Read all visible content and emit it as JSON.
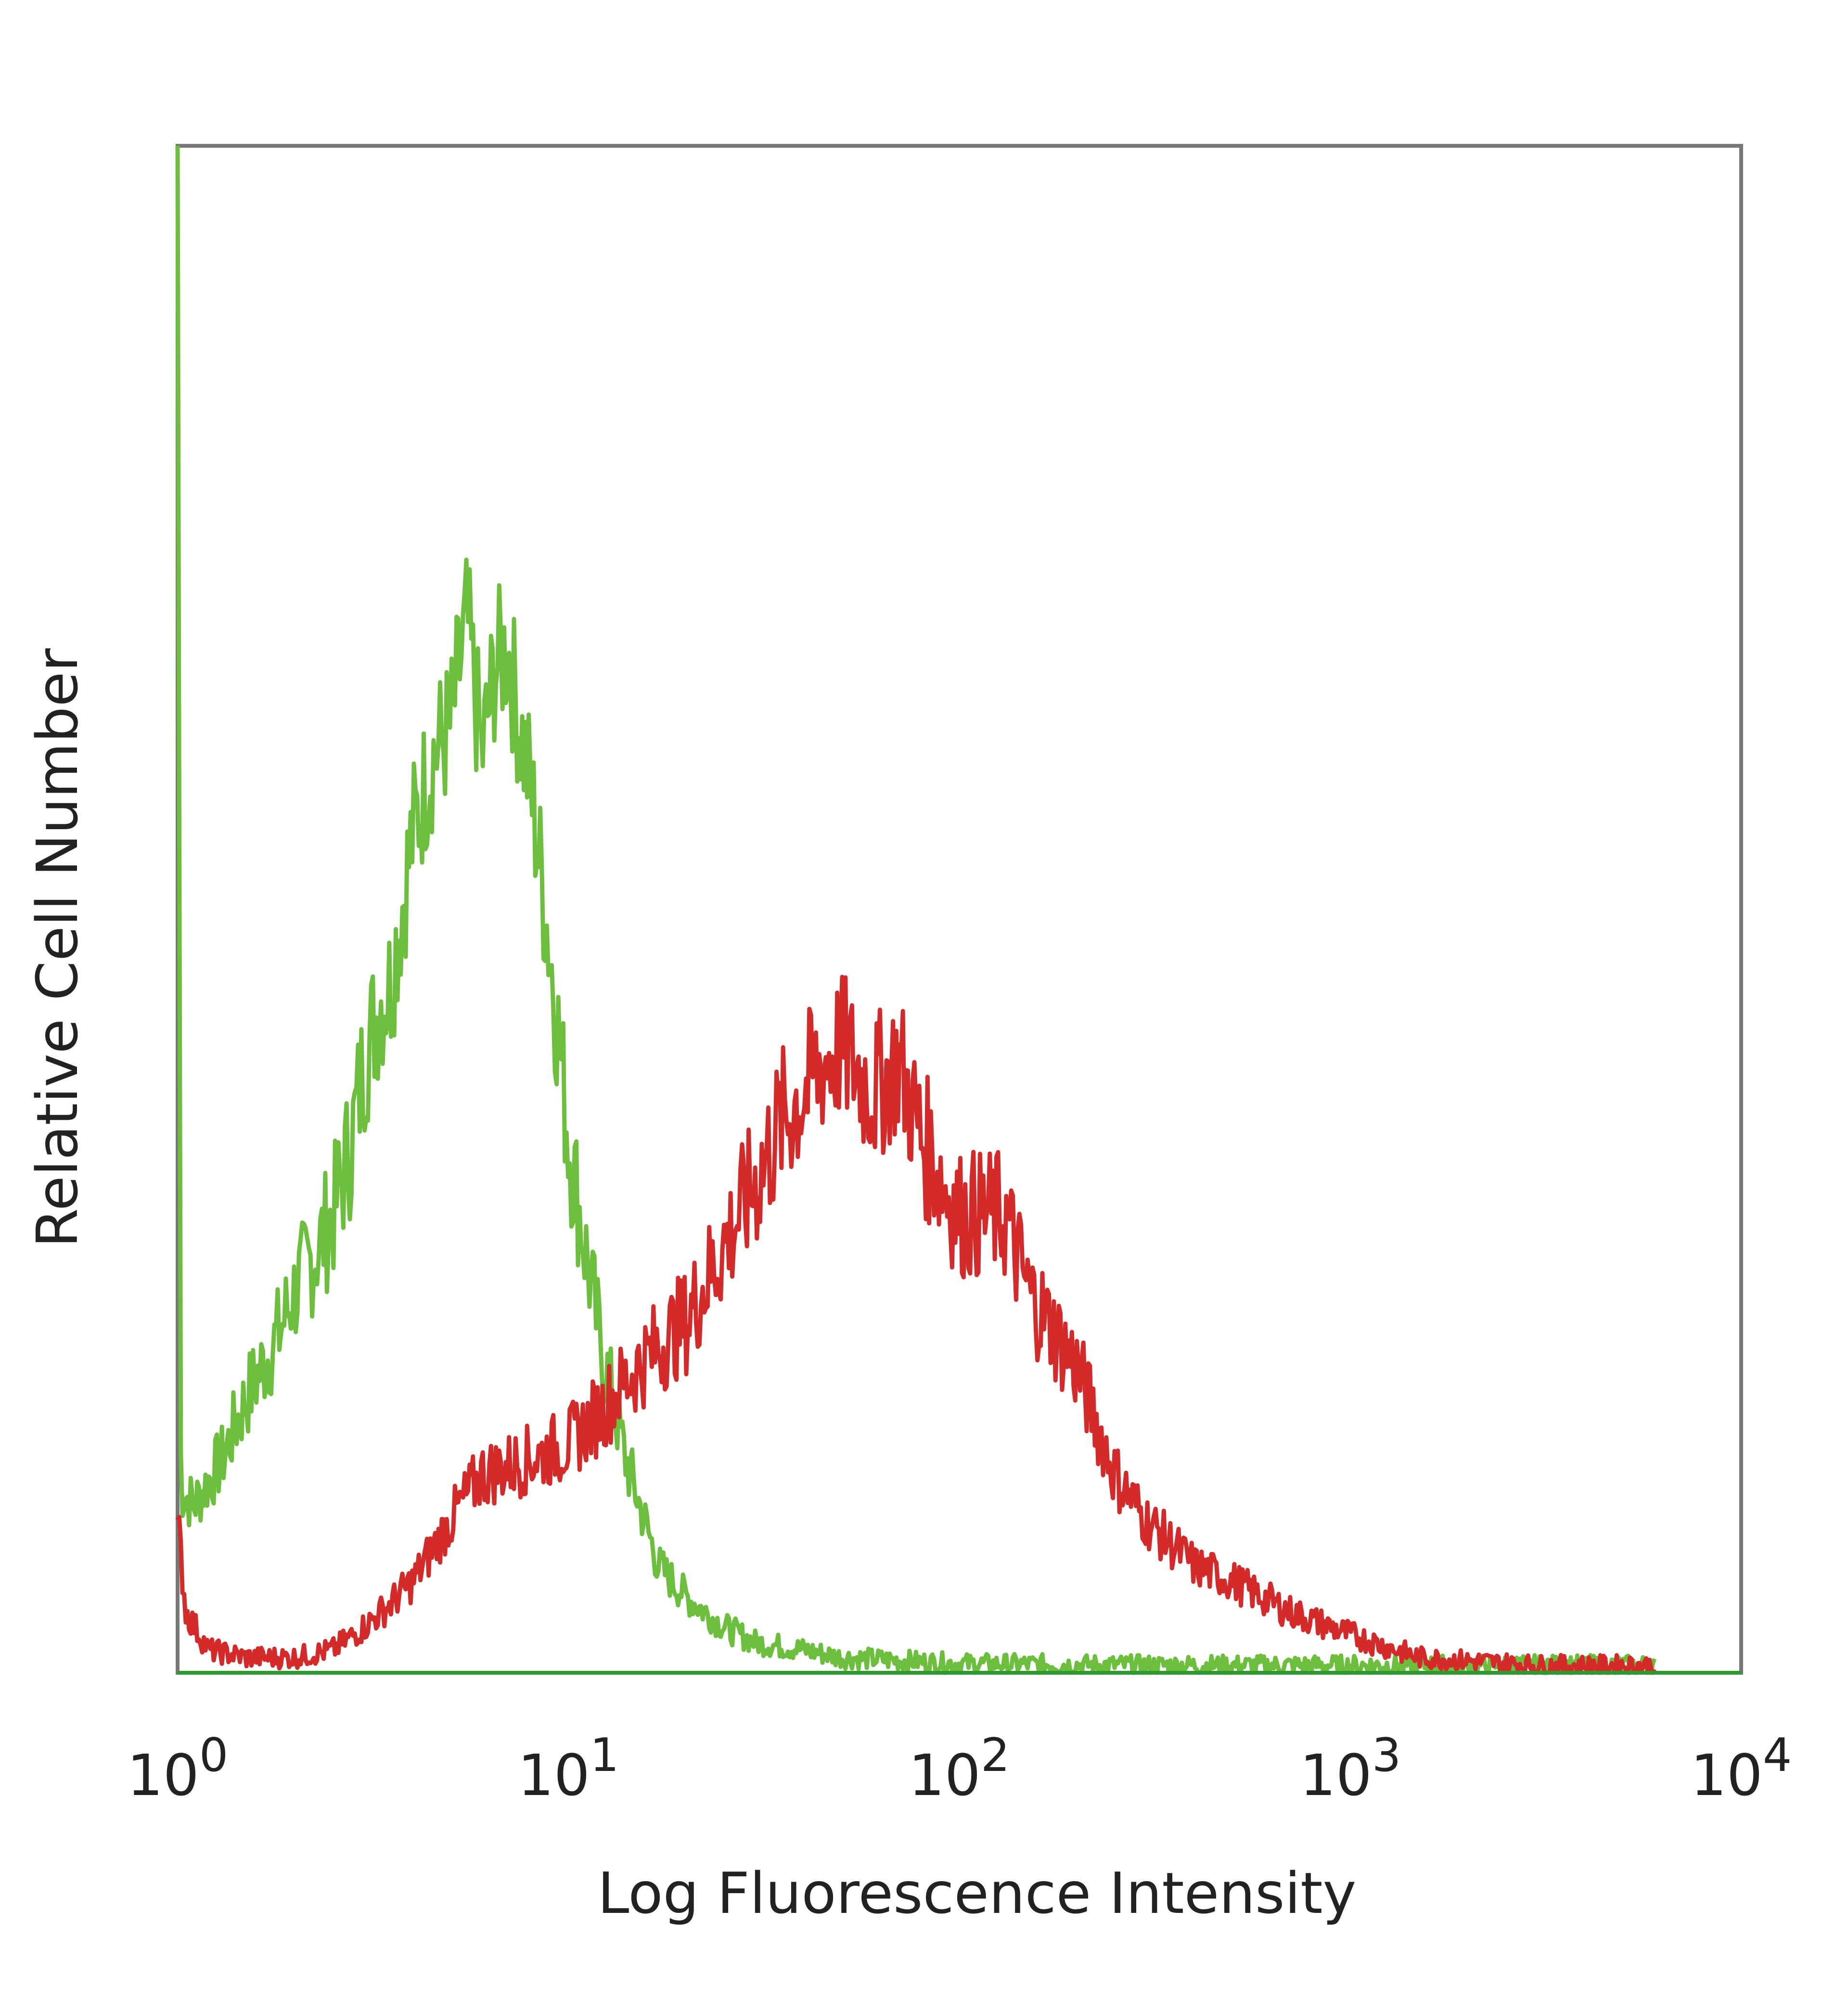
{
  "chart_data": {
    "type": "line",
    "title": "",
    "xlabel": "Log Fluorescence Intensity",
    "ylabel": "Relative Cell Number",
    "xscale": "log",
    "xlim": [
      1,
      10000
    ],
    "ylim": [
      0,
      100
    ],
    "grid": false,
    "legend": "none",
    "x_ticks": [
      {
        "base": "10",
        "exp": "0"
      },
      {
        "base": "10",
        "exp": "1"
      },
      {
        "base": "10",
        "exp": "2"
      },
      {
        "base": "10",
        "exp": "3"
      },
      {
        "base": "10",
        "exp": "4"
      }
    ],
    "series": [
      {
        "color": "#6cbf3c",
        "x": [
          1,
          1.02,
          1.1,
          1.3,
          1.5,
          1.8,
          2,
          2.3,
          2.5,
          2.8,
          3,
          3.3,
          3.5,
          4,
          4.5,
          5,
          5.5,
          6,
          6.5,
          7,
          7.5,
          8,
          9,
          10,
          11,
          12,
          14,
          17,
          20,
          25,
          30,
          40,
          50,
          100,
          300,
          1000,
          3000,
          6000
        ],
        "y": [
          100,
          12,
          11,
          14,
          18,
          22,
          25,
          28,
          30,
          35,
          40,
          44,
          45,
          55,
          60,
          62,
          69,
          60,
          66,
          67,
          62,
          58,
          47,
          35,
          28,
          22,
          14,
          7,
          5,
          3,
          2,
          1.5,
          1,
          0.6,
          0.5,
          0.5,
          0.5,
          0.5
        ]
      },
      {
        "color": "#d42a2a",
        "x": [
          1,
          1.05,
          1.2,
          1.5,
          2,
          2.5,
          3,
          3.5,
          4,
          5,
          6,
          7,
          8,
          10,
          12,
          15,
          18,
          20,
          25,
          30,
          35,
          40,
          45,
          50,
          60,
          70,
          80,
          100,
          130,
          150,
          200,
          250,
          300,
          400,
          500,
          700,
          1000,
          1500,
          3000,
          6000
        ],
        "y": [
          10,
          4,
          1.5,
          1,
          1,
          1.5,
          3,
          4.5,
          6,
          10,
          13,
          13.5,
          14,
          15,
          17,
          20,
          22,
          23,
          28,
          32,
          36,
          38,
          40,
          41,
          38,
          40,
          35,
          30,
          30,
          25,
          20,
          13,
          10,
          7,
          6,
          4,
          2.5,
          1,
          0.5,
          0.5
        ]
      }
    ]
  }
}
